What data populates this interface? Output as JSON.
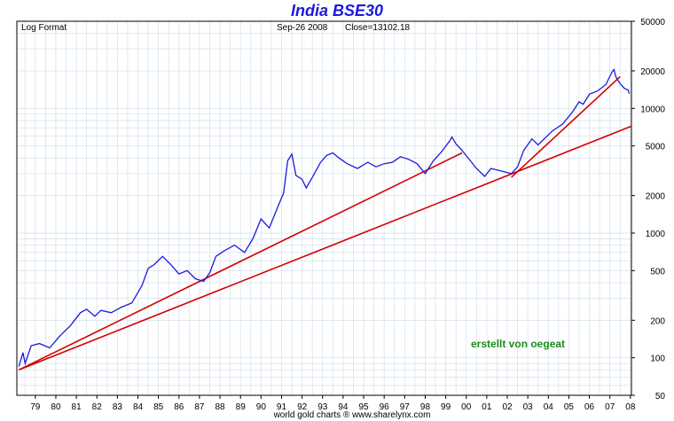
{
  "chart_data": {
    "type": "line",
    "title": "India BSE30",
    "scale_label": "Log Format",
    "date_text": "Sep-26  2008",
    "close_text": "Close=13102.18",
    "footer": "world gold charts ® www.sharelynx.com",
    "annotation": "erstellt von oegeat",
    "y_scale": "log",
    "ylim": [
      50,
      50000
    ],
    "xlim": [
      1978.9,
      2008.85
    ],
    "y_ticks": [
      50,
      100,
      200,
      500,
      1000,
      2000,
      5000,
      10000,
      20000,
      50000
    ],
    "x_tick_labels": [
      "79",
      "80",
      "81",
      "82",
      "83",
      "84",
      "85",
      "86",
      "87",
      "88",
      "89",
      "90",
      "91",
      "92",
      "93",
      "94",
      "95",
      "96",
      "97",
      "98",
      "99",
      "00",
      "01",
      "02",
      "03",
      "04",
      "05",
      "06",
      "07",
      "08"
    ],
    "x_tick_years": [
      1979.8,
      1980.8,
      1981.8,
      1982.8,
      1983.8,
      1984.8,
      1985.8,
      1986.8,
      1987.8,
      1988.8,
      1989.8,
      1990.8,
      1991.8,
      1992.8,
      1993.8,
      1994.8,
      1995.8,
      1996.8,
      1997.8,
      1998.8,
      1999.8,
      2000.8,
      2001.8,
      2002.8,
      2003.8,
      2004.8,
      2005.8,
      2006.8,
      2007.8,
      2008.8
    ],
    "grid": true,
    "colors": {
      "price": "#1a1adf",
      "trend": "#d40000",
      "grid": "#d7e3ee",
      "title": "#1a1adf",
      "annotation": "#1e8a1e"
    },
    "series": [
      {
        "x": [
          1979.0,
          1979.2,
          1979.3,
          1979.6,
          1980.0,
          1980.5,
          1981.0,
          1981.5,
          1982.0,
          1982.3,
          1982.7,
          1983.0,
          1983.5,
          1984.0,
          1984.5,
          1985.0,
          1985.3,
          1985.6,
          1986.0,
          1986.4,
          1986.8,
          1987.2,
          1987.6,
          1988.0,
          1988.3,
          1988.6,
          1989.0,
          1989.5,
          1990.0,
          1990.4,
          1990.8,
          1991.2,
          1991.6,
          1991.9,
          1992.1,
          1992.3,
          1992.5,
          1992.8,
          1993.0,
          1993.3,
          1993.7,
          1994.0,
          1994.3,
          1994.6,
          1995.0,
          1995.5,
          1996.0,
          1996.4,
          1996.8,
          1997.2,
          1997.6,
          1998.0,
          1998.4,
          1998.8,
          1999.2,
          1999.6,
          2000.0,
          2000.1,
          2000.3,
          2000.6,
          2001.0,
          2001.3,
          2001.7,
          2002.0,
          2002.5,
          2003.0,
          2003.3,
          2003.6,
          2004.0,
          2004.3,
          2004.6,
          2005.0,
          2005.5,
          2006.0,
          2006.3,
          2006.5,
          2006.8,
          2007.2,
          2007.6,
          2007.9,
          2008.0,
          2008.1,
          2008.3,
          2008.5,
          2008.7,
          2008.74
        ],
        "values": [
          85,
          110,
          90,
          125,
          130,
          120,
          150,
          180,
          230,
          245,
          215,
          240,
          230,
          255,
          275,
          380,
          520,
          560,
          650,
          560,
          470,
          500,
          430,
          410,
          480,
          650,
          720,
          800,
          700,
          900,
          1300,
          1100,
          1600,
          2100,
          3800,
          4300,
          2900,
          2700,
          2300,
          2800,
          3700,
          4200,
          4400,
          4000,
          3600,
          3300,
          3700,
          3400,
          3600,
          3700,
          4100,
          3900,
          3600,
          3000,
          3800,
          4500,
          5500,
          5900,
          5200,
          4600,
          3800,
          3300,
          2850,
          3300,
          3150,
          3000,
          3400,
          4600,
          5700,
          5100,
          5700,
          6600,
          7500,
          9500,
          11300,
          10800,
          13000,
          13800,
          15500,
          19500,
          20500,
          17800,
          15800,
          14500,
          14000,
          13102
        ]
      }
    ],
    "trendlines": [
      {
        "x": [
          1979.0,
          2008.85
        ],
        "values": [
          80,
          7200
        ]
      },
      {
        "x": [
          1979.0,
          2000.6
        ],
        "values": [
          80,
          4400
        ]
      },
      {
        "x": [
          2003.0,
          2008.3
        ],
        "values": [
          2800,
          18000
        ]
      }
    ]
  }
}
